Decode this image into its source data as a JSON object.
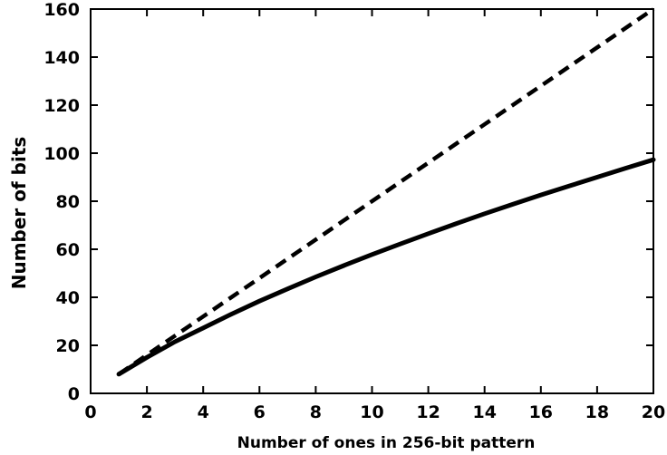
{
  "chart_data": {
    "type": "line",
    "title": "",
    "xlabel": "Number of ones in 256-bit pattern",
    "ylabel": "Number of bits",
    "xlim": [
      0,
      20
    ],
    "ylim": [
      0,
      160
    ],
    "x_ticks": [
      "0",
      "2",
      "4",
      "6",
      "8",
      "10",
      "12",
      "14",
      "16",
      "18",
      "20"
    ],
    "y_ticks": [
      "0",
      "20",
      "40",
      "60",
      "80",
      "100",
      "120",
      "140",
      "160"
    ],
    "grid": false,
    "legend": "none",
    "series": [
      {
        "style": "dashed",
        "color": "#000000",
        "x": [
          1,
          2,
          4,
          6,
          8,
          10,
          12,
          14,
          16,
          18,
          20
        ],
        "y": [
          8,
          16,
          32,
          48,
          64,
          80,
          96,
          112,
          128,
          144,
          160
        ]
      },
      {
        "style": "solid",
        "color": "#000000",
        "x": [
          1,
          2,
          3,
          4,
          5,
          6,
          7,
          8,
          9,
          10,
          11,
          12,
          13,
          14,
          15,
          16,
          17,
          18,
          19,
          20
        ],
        "y": [
          8,
          15,
          21.5,
          27.2,
          33,
          38.4,
          43.5,
          48.5,
          53.2,
          57.8,
          62.2,
          66.5,
          70.7,
          74.8,
          78.7,
          82.6,
          86.3,
          90,
          93.7,
          97.3
        ]
      }
    ]
  }
}
